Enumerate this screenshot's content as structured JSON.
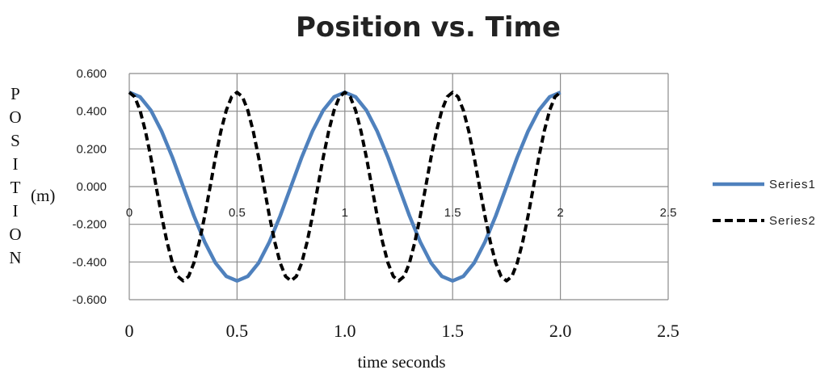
{
  "chart_data": {
    "type": "line",
    "title": "Position vs. Time",
    "xlabel": "time seconds",
    "ylabel_letters": [
      "P",
      "O",
      "S",
      "I",
      "T",
      "I",
      "O",
      "N"
    ],
    "ylabel_unit": "(m)",
    "xlim": [
      0,
      2.5
    ],
    "ylim": [
      -0.6,
      0.6
    ],
    "grid": true,
    "legend_position": "right",
    "y_ticks": [
      "0.600",
      "0.400",
      "0.200",
      "0.000",
      "-0.200",
      "-0.400",
      "-0.600"
    ],
    "x_ticks_inner": [
      "0",
      "0.5",
      "1",
      "1.5",
      "2",
      "2.5"
    ],
    "x_ticks_outer": [
      "0",
      "0.5",
      "1.0",
      "1.5",
      "2.0",
      "2.5"
    ],
    "series": [
      {
        "name": "Series1",
        "color": "#4f81bd",
        "style": "solid",
        "x": [
          0,
          0.05,
          0.1,
          0.15,
          0.2,
          0.25,
          0.3,
          0.35,
          0.4,
          0.45,
          0.5,
          0.55,
          0.6,
          0.65,
          0.7,
          0.75,
          0.8,
          0.85,
          0.9,
          0.95,
          1.0,
          1.05,
          1.1,
          1.15,
          1.2,
          1.25,
          1.3,
          1.35,
          1.4,
          1.45,
          1.5,
          1.55,
          1.6,
          1.65,
          1.7,
          1.75,
          1.8,
          1.85,
          1.9,
          1.95,
          2.0
        ],
        "y": [
          0.5,
          0.476,
          0.405,
          0.294,
          0.155,
          0.0,
          -0.155,
          -0.294,
          -0.405,
          -0.476,
          -0.5,
          -0.476,
          -0.405,
          -0.294,
          -0.155,
          0.0,
          0.155,
          0.294,
          0.405,
          0.476,
          0.5,
          0.476,
          0.405,
          0.294,
          0.155,
          0.0,
          -0.155,
          -0.294,
          -0.405,
          -0.476,
          -0.5,
          -0.476,
          -0.405,
          -0.294,
          -0.155,
          0.0,
          0.155,
          0.294,
          0.405,
          0.476,
          0.5
        ]
      },
      {
        "name": "Series2",
        "color": "#000000",
        "style": "dashed",
        "x": [
          0,
          0.025,
          0.05,
          0.075,
          0.1,
          0.125,
          0.15,
          0.175,
          0.2,
          0.225,
          0.25,
          0.275,
          0.3,
          0.325,
          0.35,
          0.375,
          0.4,
          0.425,
          0.45,
          0.475,
          0.5,
          0.525,
          0.55,
          0.575,
          0.6,
          0.625,
          0.65,
          0.675,
          0.7,
          0.725,
          0.75,
          0.775,
          0.8,
          0.825,
          0.85,
          0.875,
          0.9,
          0.925,
          0.95,
          0.975,
          1.0,
          1.025,
          1.05,
          1.075,
          1.1,
          1.125,
          1.15,
          1.175,
          1.2,
          1.225,
          1.25,
          1.275,
          1.3,
          1.325,
          1.35,
          1.375,
          1.4,
          1.425,
          1.45,
          1.475,
          1.5,
          1.525,
          1.55,
          1.575,
          1.6,
          1.625,
          1.65,
          1.675,
          1.7,
          1.725,
          1.75,
          1.775,
          1.8,
          1.825,
          1.85,
          1.875,
          1.9,
          1.925,
          1.95,
          1.975,
          2.0
        ],
        "y": [
          0.5,
          0.476,
          0.405,
          0.294,
          0.155,
          0.0,
          -0.155,
          -0.294,
          -0.405,
          -0.476,
          -0.5,
          -0.476,
          -0.405,
          -0.294,
          -0.155,
          0.0,
          0.155,
          0.294,
          0.405,
          0.476,
          0.5,
          0.476,
          0.405,
          0.294,
          0.155,
          0.0,
          -0.155,
          -0.294,
          -0.405,
          -0.476,
          -0.5,
          -0.476,
          -0.405,
          -0.294,
          -0.155,
          0.0,
          0.155,
          0.294,
          0.405,
          0.476,
          0.5,
          0.476,
          0.405,
          0.294,
          0.155,
          0.0,
          -0.155,
          -0.294,
          -0.405,
          -0.476,
          -0.5,
          -0.476,
          -0.405,
          -0.294,
          -0.155,
          0.0,
          0.155,
          0.294,
          0.405,
          0.476,
          0.5,
          0.476,
          0.405,
          0.294,
          0.155,
          0.0,
          -0.155,
          -0.294,
          -0.405,
          -0.476,
          -0.5,
          -0.476,
          -0.405,
          -0.294,
          -0.155,
          0.0,
          0.155,
          0.294,
          0.405,
          0.476,
          0.5
        ]
      }
    ]
  }
}
